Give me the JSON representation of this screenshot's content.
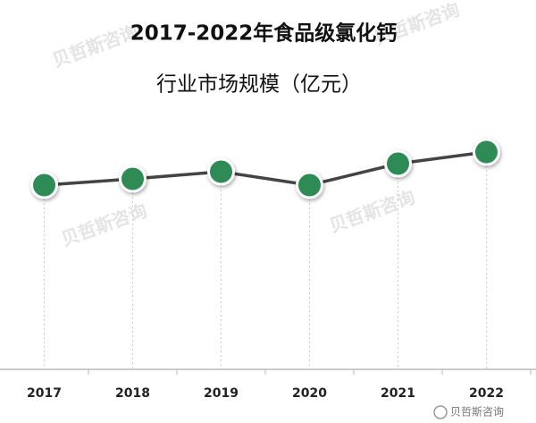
{
  "chart_data": {
    "type": "line",
    "title": "2017-2022年食品级氯化钙",
    "subtitle": "行业市场规模（亿元）",
    "categories": [
      "2017",
      "2018",
      "2019",
      "2020",
      "2021",
      "2022"
    ],
    "values": [
      206,
      213,
      221,
      206,
      230,
      243
    ],
    "color": "#2e8b57",
    "line_color": "#444444",
    "ylim": [
      0,
      260
    ],
    "watermark": "贝哲斯咨询",
    "source": "贝哲斯咨询"
  }
}
